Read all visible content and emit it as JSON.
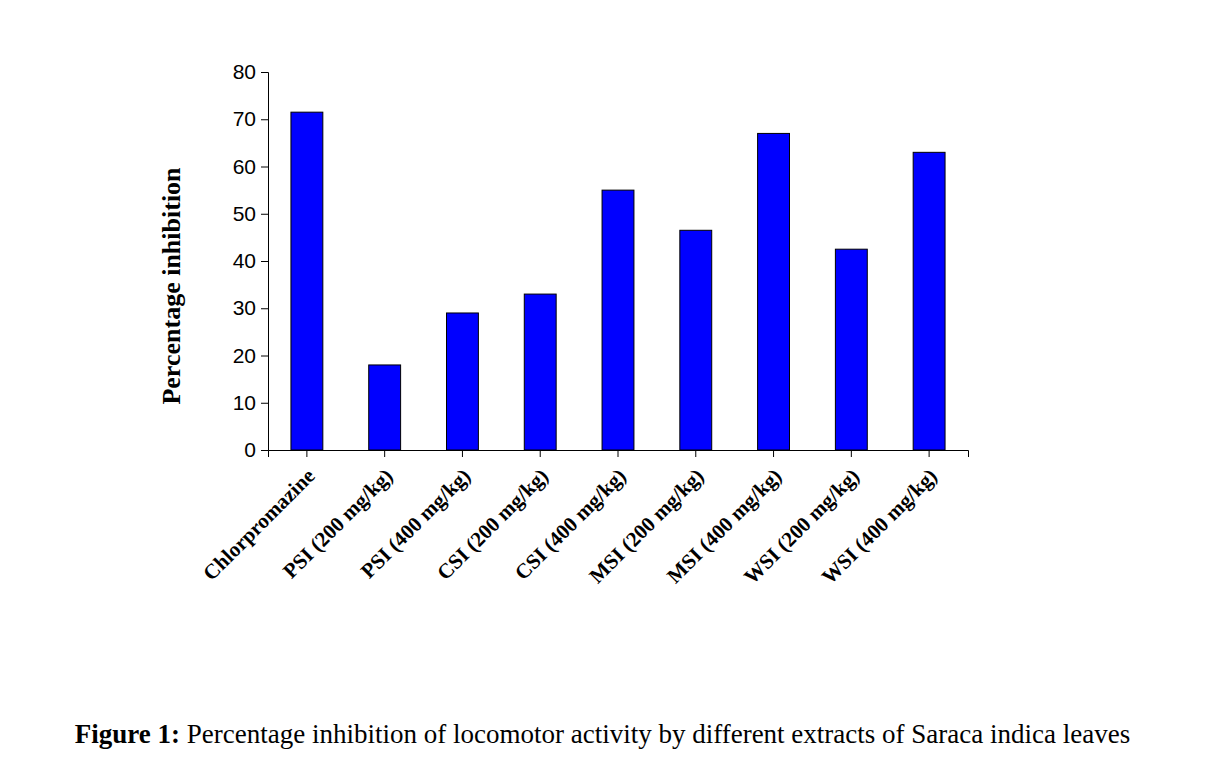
{
  "chart_data": {
    "type": "bar",
    "title": "Figure 1: Percentage inhibition of locomotor activity by different extracts of Saraca indica leaves",
    "y_label": "Percentage inhibition",
    "categories": [
      "Chlorpromazine",
      "PSI (200 mg/kg)",
      "PSI (400 mg/kg)",
      "CSI (200 mg/kg)",
      "CSI (400 mg/kg)",
      "MSI (200 mg/kg)",
      "MSI (400 mg/kg)",
      "WSI (200 mg/kg)",
      "WSI (400 mg/kg)"
    ],
    "values": [
      71.5,
      18,
      29,
      33,
      55,
      46.5,
      67,
      42.5,
      63
    ],
    "color": "#0000ff",
    "ylim": [
      0,
      80
    ],
    "yticks": [
      0,
      10,
      20,
      30,
      40,
      50,
      60,
      70,
      80
    ],
    "grid": false
  }
}
